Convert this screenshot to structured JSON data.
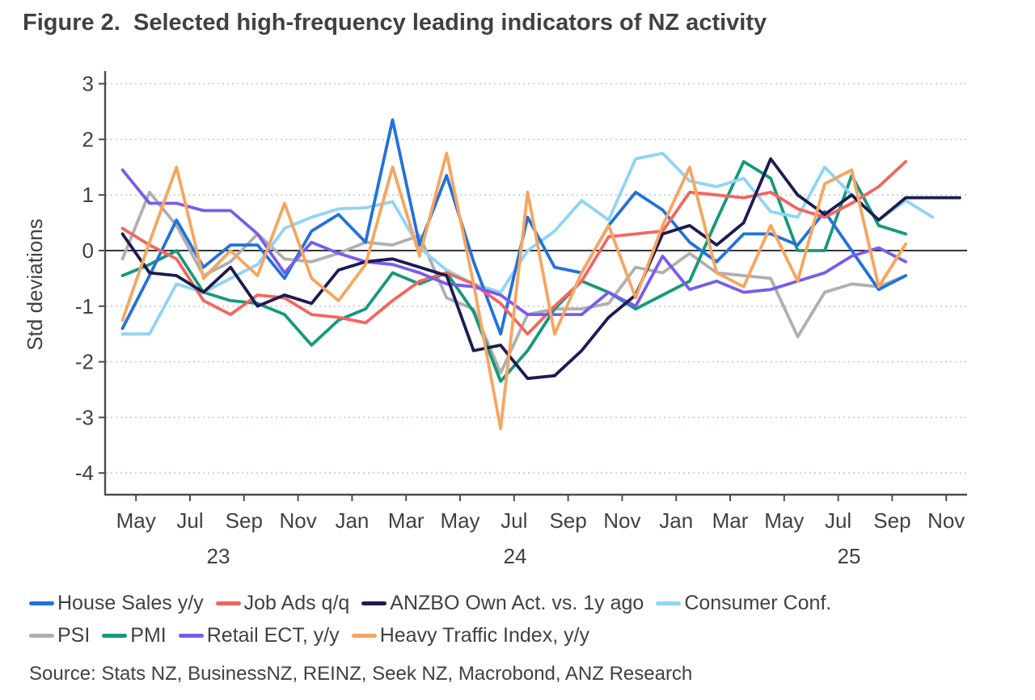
{
  "title": "Figure 2.  Selected high-frequency leading indicators of NZ activity",
  "source_note": "Source: Stats NZ, BusinessNZ, REINZ, Seek NZ, Macrobond, ANZ Research",
  "colors": {
    "text": "#414042",
    "axis": "#4D4D4F",
    "grid_dotted": "#BBCFDC",
    "zero_line": "#1A1A1A",
    "background": "#FFFFFF"
  },
  "chart_data": {
    "type": "line",
    "title": "Figure 2.  Selected high-frequency leading indicators of NZ activity",
    "xlabel": "",
    "ylabel": "Std deviations",
    "ylim": [
      -4,
      3
    ],
    "yticks": [
      3,
      2,
      1,
      0,
      -1,
      -2,
      -3,
      -4
    ],
    "grid": "horizontal dotted lines at each integer, solid black zero line",
    "legend_position": "bottom",
    "x_months": [
      "Apr 23",
      "May 23",
      "Jun 23",
      "Jul 23",
      "Aug 23",
      "Sep 23",
      "Oct 23",
      "Nov 23",
      "Dec 23",
      "Jan 24",
      "Feb 24",
      "Mar 24",
      "Apr 24",
      "May 24",
      "Jun 24",
      "Jul 24",
      "Aug 24",
      "Sep 24",
      "Oct 24",
      "Nov 24",
      "Dec 24",
      "Jan 25",
      "Feb 25",
      "Mar 25",
      "Apr 25",
      "May 25",
      "Jun 25",
      "Jul 25",
      "Aug 25",
      "Sep 25",
      "Oct 25",
      "Nov 25"
    ],
    "x_tick_labels": [
      "May",
      "Jul",
      "Sep",
      "Nov",
      "Jan",
      "Mar",
      "May",
      "Jul",
      "Sep",
      "Nov",
      "Jan",
      "Mar",
      "May",
      "Jul",
      "Sep",
      "Nov"
    ],
    "year_labels": [
      "23",
      "24",
      "25"
    ],
    "series": [
      {
        "name": "house-sales",
        "label": "House Sales y/y",
        "color": "#2272DB",
        "values": [
          -1.4,
          -0.45,
          0.55,
          -0.3,
          0.1,
          0.1,
          -0.5,
          0.35,
          0.65,
          0.15,
          2.35,
          0.1,
          1.35,
          -0.2,
          -1.5,
          0.6,
          -0.3,
          -0.4,
          0.45,
          1.05,
          0.73,
          0.15,
          -0.2,
          0.3,
          0.3,
          0.1,
          0.7,
          0.0,
          -0.7,
          -0.45,
          null,
          null
        ]
      },
      {
        "name": "job-ads",
        "label": "Job Ads q/q",
        "color": "#F4655F",
        "values": [
          0.4,
          0.1,
          -0.15,
          -0.9,
          -1.15,
          -0.8,
          -0.85,
          -1.15,
          -1.2,
          -1.3,
          -0.9,
          -0.55,
          -0.4,
          -0.6,
          -0.95,
          -1.5,
          -1.0,
          -0.55,
          0.25,
          0.3,
          0.35,
          1.05,
          1.0,
          0.95,
          1.05,
          0.75,
          0.6,
          0.85,
          1.15,
          1.6,
          null,
          null
        ]
      },
      {
        "name": "anzbo-own-activity",
        "label": "ANZBO Own Act. vs. 1y ago",
        "color": "#1C1C52",
        "values": [
          0.3,
          -0.4,
          -0.45,
          -0.75,
          -0.3,
          -1.0,
          -0.8,
          -0.95,
          -0.35,
          -0.2,
          -0.15,
          -0.3,
          -0.45,
          -1.8,
          -1.7,
          -2.3,
          -2.25,
          -1.8,
          -1.2,
          -0.8,
          0.3,
          0.45,
          0.1,
          0.5,
          1.65,
          1.0,
          0.65,
          1.0,
          0.55,
          0.95,
          0.95,
          0.95
        ]
      },
      {
        "name": "consumer-confidence",
        "label": "Consumer Conf.",
        "color": "#8FD4F6",
        "values": [
          -1.5,
          -1.5,
          -0.6,
          -0.75,
          -0.5,
          -0.25,
          0.4,
          0.6,
          0.75,
          0.77,
          0.88,
          0.05,
          -0.35,
          -0.6,
          -0.75,
          0.0,
          0.35,
          0.9,
          0.55,
          1.65,
          1.75,
          1.25,
          1.15,
          1.3,
          0.7,
          0.6,
          1.5,
          1.0,
          0.55,
          0.9,
          0.6,
          null
        ]
      },
      {
        "name": "psi",
        "label": "PSI",
        "color": "#AFAFB1",
        "values": [
          -0.15,
          1.05,
          0.45,
          -0.45,
          -0.2,
          0.3,
          -0.15,
          -0.2,
          -0.05,
          0.15,
          0.1,
          0.27,
          -0.85,
          -1.05,
          -2.2,
          -1.15,
          -1.05,
          -1.05,
          -0.95,
          -0.3,
          -0.4,
          -0.05,
          -0.4,
          -0.45,
          -0.5,
          -1.55,
          -0.75,
          -0.6,
          -0.65,
          -0.45,
          null,
          null
        ]
      },
      {
        "name": "pmi",
        "label": "PMI",
        "color": "#15997B",
        "values": [
          -0.45,
          -0.25,
          0.0,
          -0.75,
          -0.9,
          -0.95,
          -1.15,
          -1.7,
          -1.25,
          -1.05,
          -0.4,
          -0.6,
          -0.4,
          -1.1,
          -2.35,
          -1.8,
          -1.05,
          -0.55,
          -0.75,
          -1.05,
          -0.8,
          -0.55,
          0.55,
          1.6,
          1.3,
          0.0,
          0.0,
          1.35,
          0.45,
          0.3,
          null,
          null
        ]
      },
      {
        "name": "retail-ect",
        "label": "Retail ECT, y/y",
        "color": "#7A5BEC",
        "values": [
          1.45,
          0.85,
          0.85,
          0.72,
          0.72,
          0.3,
          -0.4,
          0.15,
          -0.05,
          -0.2,
          -0.25,
          -0.4,
          -0.6,
          -0.65,
          -0.8,
          -1.15,
          -1.15,
          -1.15,
          -0.75,
          -1.0,
          -0.1,
          -0.7,
          -0.55,
          -0.75,
          -0.7,
          -0.55,
          -0.4,
          -0.1,
          0.05,
          -0.2,
          null,
          null
        ]
      },
      {
        "name": "heavy-traffic",
        "label": "Heavy Traffic Index, y/y",
        "color": "#F7A55F",
        "values": [
          -1.25,
          0.15,
          1.5,
          -0.5,
          0.0,
          -0.45,
          0.85,
          -0.5,
          -0.9,
          -0.25,
          1.5,
          -0.1,
          1.75,
          -0.6,
          -3.2,
          1.05,
          -1.5,
          -0.4,
          0.45,
          -0.85,
          0.45,
          1.5,
          -0.4,
          -0.65,
          0.45,
          -0.55,
          1.2,
          1.45,
          -0.65,
          0.12,
          null,
          null
        ]
      }
    ],
    "legend_rows": [
      [
        "house-sales",
        "job-ads",
        "anzbo-own-activity",
        "consumer-confidence"
      ],
      [
        "psi",
        "pmi",
        "retail-ect",
        "heavy-traffic"
      ]
    ]
  }
}
